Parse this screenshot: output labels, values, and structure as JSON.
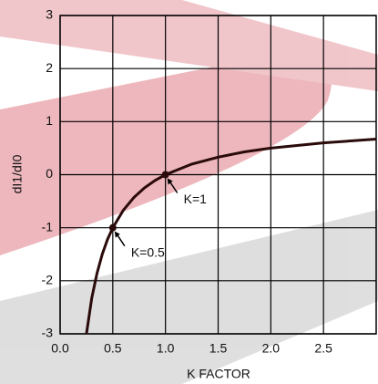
{
  "chart_data": {
    "type": "line",
    "xlabel": "K FACTOR",
    "ylabel": "dI1/dI0",
    "x": [
      0.25,
      0.3,
      0.35,
      0.4,
      0.45,
      0.5,
      0.6,
      0.7,
      0.8,
      0.9,
      1.0,
      1.25,
      1.5,
      1.75,
      2.0,
      2.5,
      3.0
    ],
    "series": [
      {
        "color": "#2a0a0a",
        "values": [
          -3,
          -2.33,
          -1.86,
          -1.5,
          -1.22,
          -1,
          -0.67,
          -0.43,
          -0.25,
          -0.11,
          0,
          0.2,
          0.33,
          0.43,
          0.5,
          0.6,
          0.67
        ]
      }
    ],
    "xlim": [
      0,
      3
    ],
    "ylim": [
      -3,
      3
    ],
    "xticks": [
      {
        "value": 0,
        "label": "0.0"
      },
      0.5,
      {
        "value": 1,
        "label": "1.0"
      },
      1.5,
      {
        "value": 2,
        "label": "2.0"
      },
      2.5
    ],
    "yticks": [
      -3,
      -2,
      -1,
      0,
      1,
      2,
      3
    ],
    "grid": true,
    "annotations": [
      {
        "text": "K=1",
        "x": 1,
        "y": 0
      },
      {
        "text": "K=0.5",
        "x": 0.5,
        "y": -1
      }
    ]
  }
}
